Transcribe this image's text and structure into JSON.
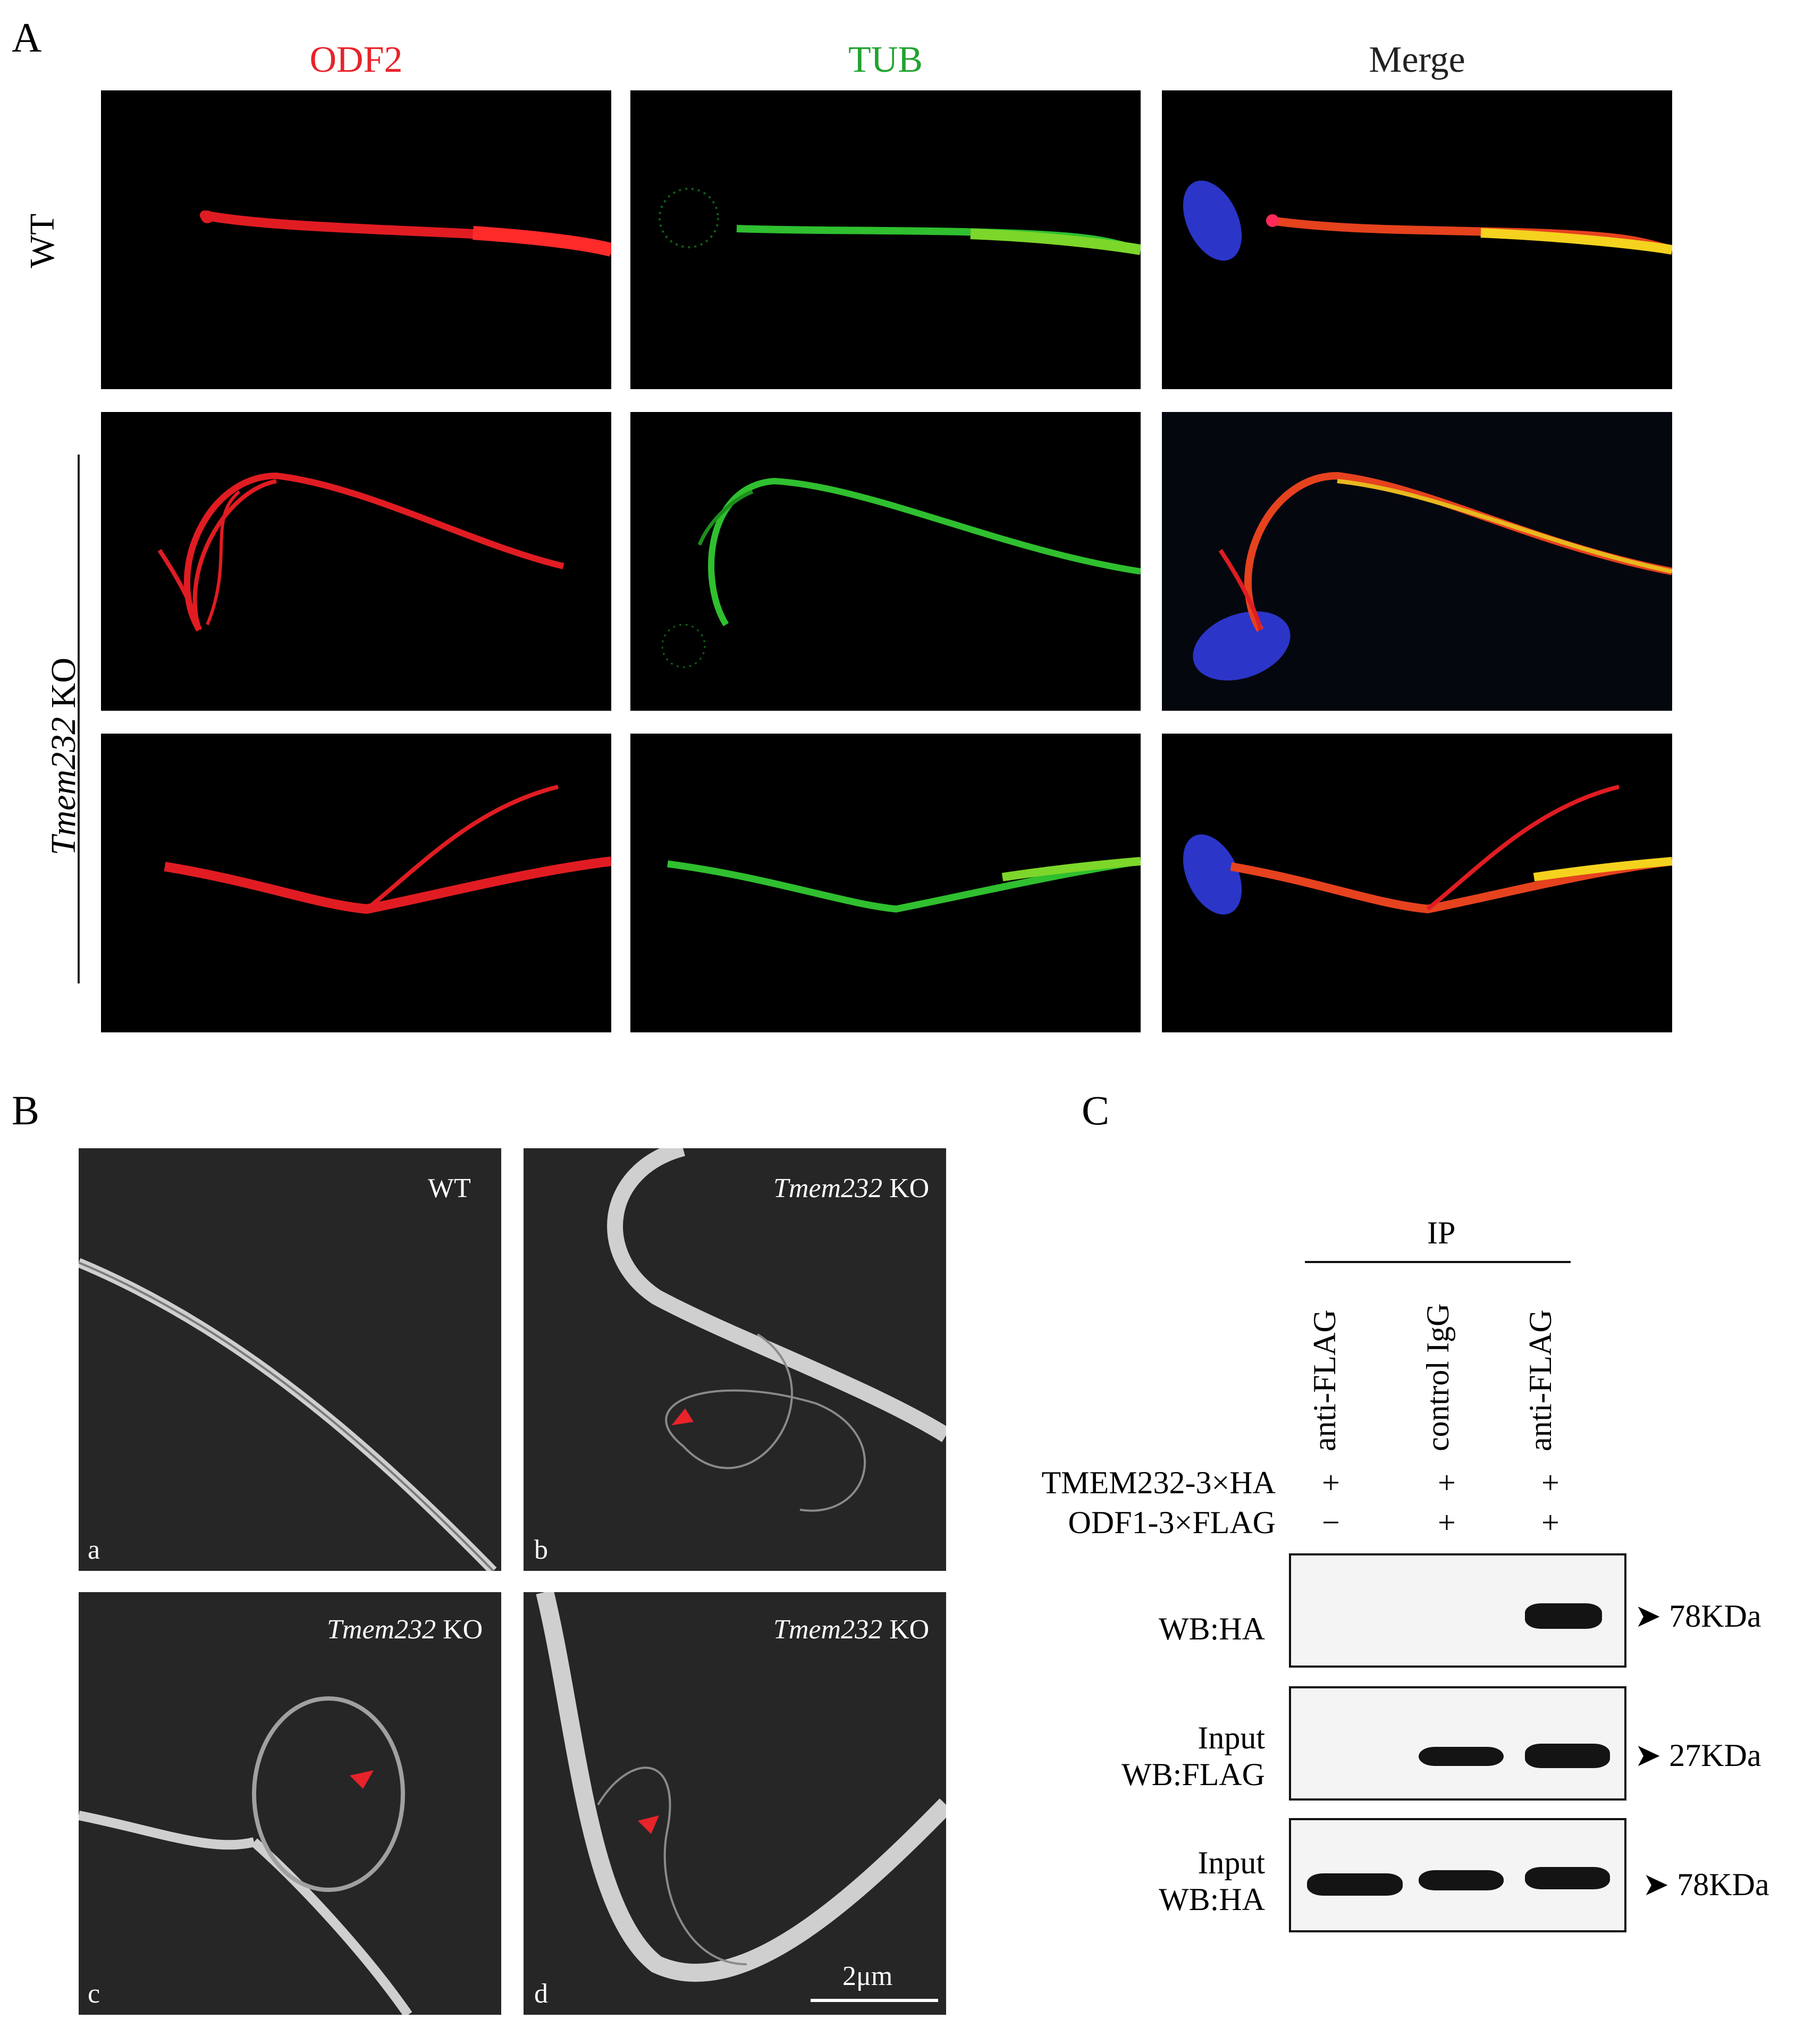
{
  "panels": {
    "A": {
      "letter": "A",
      "columns": [
        {
          "label": "ODF2",
          "color": "#e8232a"
        },
        {
          "label": "TUB",
          "color": "#21a32f"
        },
        {
          "label": "Merge",
          "color": "#222222"
        }
      ],
      "rows": [
        {
          "label": "WT",
          "italic_part": ""
        },
        {
          "label": " KO",
          "italic_part": "Tmem232"
        }
      ]
    },
    "B": {
      "letter": "B",
      "images": [
        {
          "letter": "a",
          "genotype": "WT",
          "italic_part": ""
        },
        {
          "letter": "b",
          "genotype": " KO",
          "italic_part": "Tmem232"
        },
        {
          "letter": "c",
          "genotype": " KO",
          "italic_part": "Tmem232"
        },
        {
          "letter": "d",
          "genotype": " KO",
          "italic_part": "Tmem232"
        }
      ],
      "scale_bar": "2μm"
    },
    "C": {
      "letter": "C",
      "ip_label": "IP",
      "lanes": [
        "anti-FLAG",
        "control IgG",
        "anti-FLAG"
      ],
      "treatments": [
        {
          "label": "TMEM232-3×HA",
          "values": [
            "+",
            "+",
            "+"
          ]
        },
        {
          "label": "ODF1-3×FLAG",
          "values": [
            "−",
            "+",
            "+"
          ]
        }
      ],
      "blots": [
        {
          "label_lines": [
            "WB:HA"
          ],
          "size": "78KDa"
        },
        {
          "label_lines": [
            "Input",
            "WB:FLAG"
          ],
          "size": "27KDa"
        },
        {
          "label_lines": [
            "Input",
            "WB:HA"
          ],
          "size": "78KDa"
        }
      ]
    }
  }
}
